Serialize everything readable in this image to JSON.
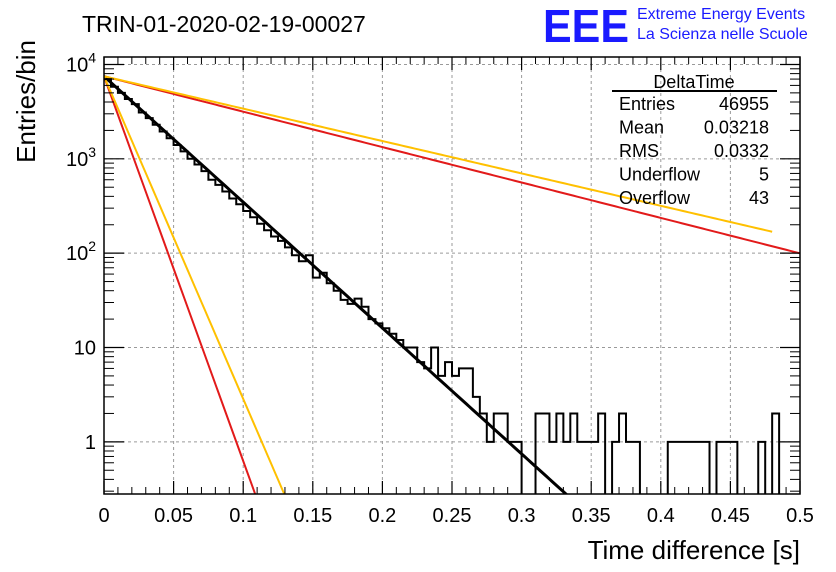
{
  "chart_data": {
    "type": "line",
    "title": "TRIN-01-2020-02-19-00027",
    "xlabel": "Time difference [s]",
    "ylabel": "Entries/bin",
    "xlim": [
      0,
      0.5
    ],
    "ylim": [
      0.28,
      12000
    ],
    "yscale": "log",
    "grid": true,
    "x_ticks": [
      0,
      0.05,
      0.1,
      0.15,
      0.2,
      0.25,
      0.3,
      0.35,
      0.4,
      0.45,
      0.5
    ],
    "x_tick_labels": [
      "0",
      "0.05",
      "0.1",
      "0.15",
      "0.2",
      "0.25",
      "0.3",
      "0.35",
      "0.4",
      "0.45",
      "0.5"
    ],
    "y_ticks": [
      1,
      10,
      100,
      1000,
      10000
    ],
    "y_tick_labels": [
      {
        "base": "1",
        "exp": ""
      },
      {
        "base": "10",
        "exp": ""
      },
      {
        "base": "10",
        "exp": "2"
      },
      {
        "base": "10",
        "exp": "3"
      },
      {
        "base": "10",
        "exp": "4"
      }
    ],
    "histogram": {
      "bin_width": 0.005,
      "counts": [
        7000,
        5800,
        5000,
        4300,
        3800,
        3100,
        2700,
        2300,
        1950,
        1650,
        1400,
        1200,
        1000,
        870,
        740,
        600,
        530,
        450,
        380,
        330,
        280,
        240,
        205,
        175,
        150,
        135,
        115,
        95,
        82,
        95,
        55,
        62,
        48,
        40,
        32,
        29,
        33,
        27,
        20,
        18,
        16,
        14,
        12,
        10,
        10,
        7,
        6,
        10,
        5,
        7,
        5,
        6,
        6,
        3,
        2,
        1,
        2,
        2,
        1,
        1,
        0,
        0,
        2,
        2,
        1,
        2,
        1,
        2,
        1,
        1,
        1,
        2,
        0,
        1,
        2,
        1,
        1,
        0,
        0,
        0,
        0,
        1,
        1,
        1,
        1,
        1,
        1,
        0,
        1,
        1,
        1,
        0,
        0,
        0,
        1,
        0,
        2,
        0,
        0,
        0
      ],
      "color": "#000000"
    },
    "fits": [
      {
        "y0": 7500,
        "tau": 0.03255,
        "color": "#000000"
      },
      {
        "y0": 7500,
        "tau": 0.1157,
        "color": "#e21a1a"
      },
      {
        "y0": 7500,
        "tau": 0.01065,
        "color": "#e21a1a"
      },
      {
        "y0": 7500,
        "tau": 0.1265,
        "color": "#ffc000",
        "x_end": 0.48
      },
      {
        "y0": 7500,
        "tau": 0.0127,
        "color": "#ffc000"
      }
    ],
    "stats": {
      "title": "DeltaTime",
      "rows": [
        {
          "label": "Entries",
          "value": "46955"
        },
        {
          "label": "Mean",
          "value": "0.03218"
        },
        {
          "label": "RMS",
          "value": "0.0332"
        },
        {
          "label": "Underflow",
          "value": "5"
        },
        {
          "label": "Overflow",
          "value": "43"
        }
      ]
    }
  },
  "logo": {
    "big": "EEE",
    "line1": "Extreme Energy Events",
    "line2": "La Scienza nelle Scuole"
  }
}
